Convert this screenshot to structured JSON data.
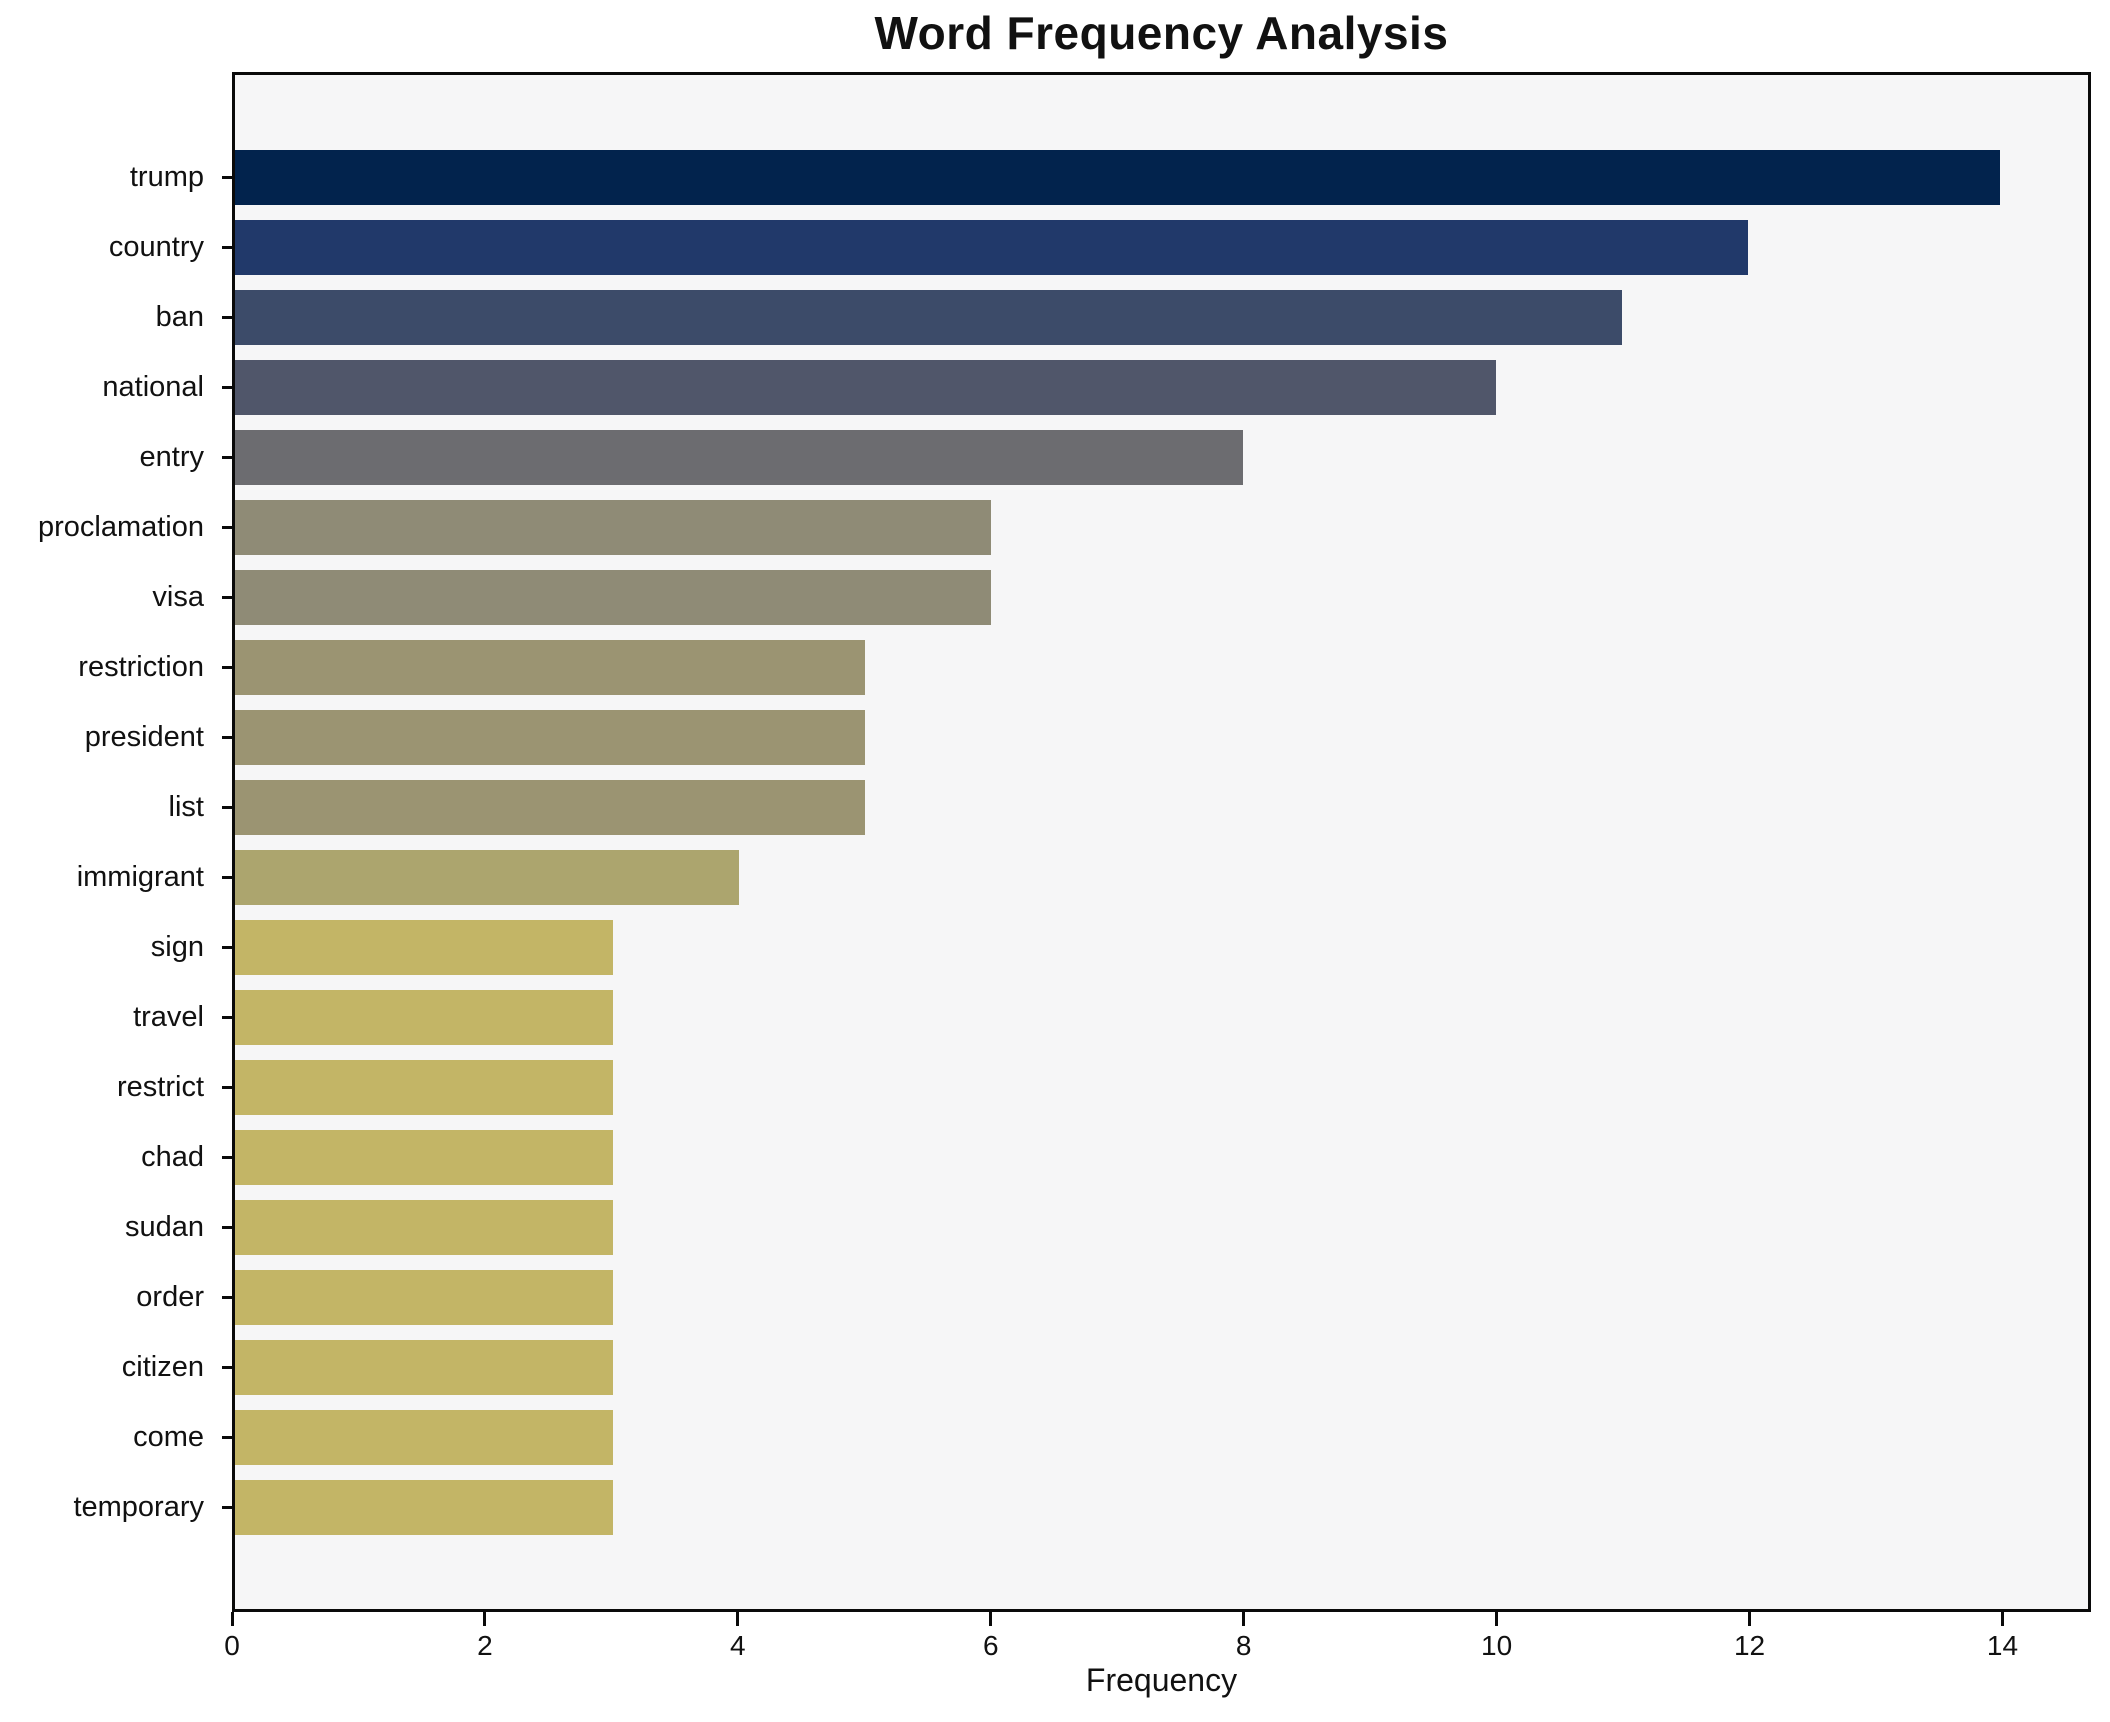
{
  "title": "Word Frequency Analysis",
  "chart_data": {
    "type": "bar",
    "orientation": "horizontal",
    "title": "Word Frequency Analysis",
    "xlabel": "Frequency",
    "ylabel": "",
    "categories": [
      "trump",
      "country",
      "ban",
      "national",
      "entry",
      "proclamation",
      "visa",
      "restriction",
      "president",
      "list",
      "immigrant",
      "sign",
      "travel",
      "restrict",
      "chad",
      "sudan",
      "order",
      "citizen",
      "come",
      "temporary"
    ],
    "values": [
      14,
      12,
      11,
      10,
      8,
      6,
      6,
      5,
      5,
      5,
      4,
      3,
      3,
      3,
      3,
      3,
      3,
      3,
      3,
      3
    ],
    "bar_colors": [
      "#02234d",
      "#21396a",
      "#3c4b69",
      "#50566a",
      "#6c6c70",
      "#8f8b76",
      "#8f8b76",
      "#9b9472",
      "#9b9472",
      "#9b9472",
      "#aca56e",
      "#c3b566",
      "#c3b566",
      "#c3b566",
      "#c3b566",
      "#c3b566",
      "#c3b566",
      "#c3b566",
      "#c3b566",
      "#c3b566"
    ],
    "x_ticks": [
      0,
      2,
      4,
      6,
      8,
      10,
      12,
      14
    ],
    "xlim": [
      0,
      14.7
    ],
    "grid": false,
    "legend_position": "none",
    "plot_background": "#f6f6f7",
    "spine_color": "#0a0a0a"
  }
}
